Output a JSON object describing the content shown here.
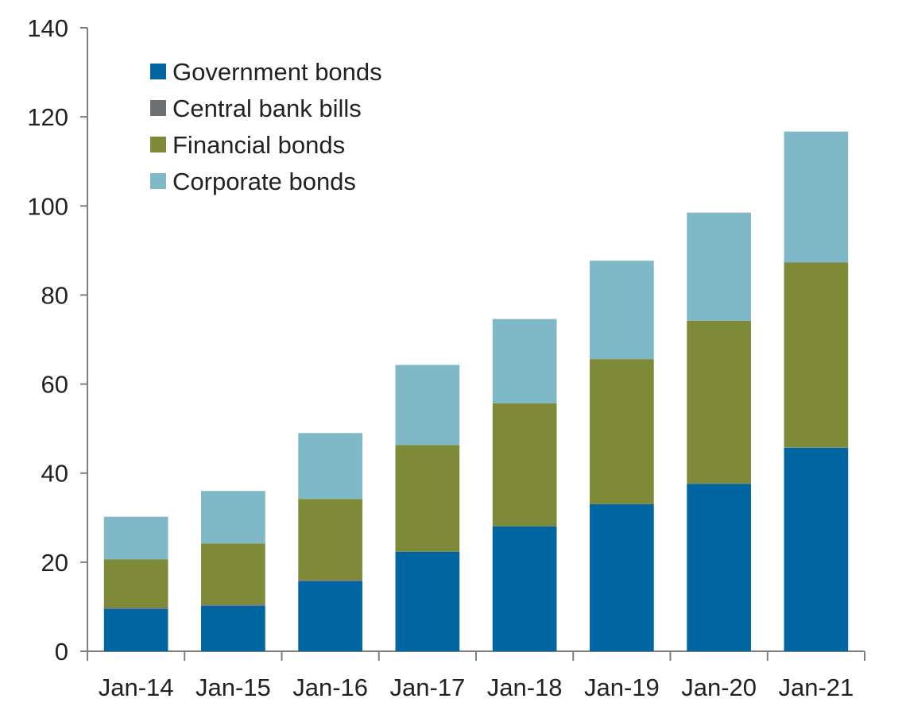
{
  "chart_data": {
    "type": "bar",
    "stacked": true,
    "categories": [
      "Jan-14",
      "Jan-15",
      "Jan-16",
      "Jan-17",
      "Jan-18",
      "Jan-19",
      "Jan-20",
      "Jan-21"
    ],
    "series": [
      {
        "name": "Government bonds",
        "color": "#0066a1",
        "values": [
          9.5,
          10.2,
          15.7,
          22.3,
          28.0,
          33.0,
          37.6,
          45.7
        ]
      },
      {
        "name": "Central bank bills",
        "color": "#6d6e71",
        "values": [
          0.3,
          0.3,
          0.3,
          0.1,
          0.1,
          0.1,
          0.1,
          0.1
        ]
      },
      {
        "name": "Financial bonds",
        "color": "#7f8a38",
        "values": [
          10.8,
          13.7,
          18.2,
          23.9,
          27.6,
          32.5,
          36.5,
          41.5
        ]
      },
      {
        "name": "Corporate bonds",
        "color": "#7fb8c6",
        "values": [
          9.6,
          11.8,
          14.8,
          18.0,
          18.9,
          22.1,
          24.3,
          29.4
        ]
      }
    ],
    "yticks": [
      0,
      20,
      40,
      60,
      80,
      100,
      120,
      140
    ],
    "ylim": [
      0,
      140
    ],
    "title": "",
    "xlabel": "",
    "ylabel": "",
    "grid": false,
    "legend_position": "top-left"
  }
}
